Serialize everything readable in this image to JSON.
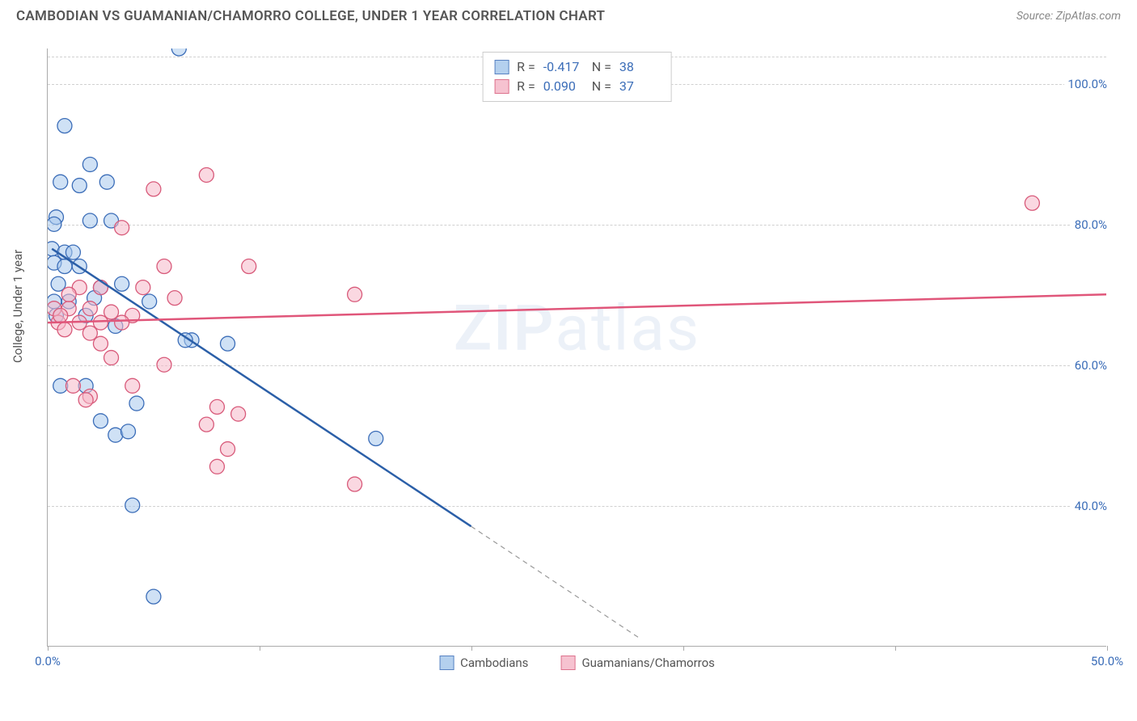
{
  "header": {
    "title": "CAMBODIAN VS GUAMANIAN/CHAMORRO COLLEGE, UNDER 1 YEAR CORRELATION CHART",
    "source": "Source: ZipAtlas.com"
  },
  "chart": {
    "type": "scatter",
    "y_axis_label": "College, Under 1 year",
    "xlim": [
      0,
      50
    ],
    "ylim": [
      20,
      105
    ],
    "x_ticks": [
      0,
      10,
      20,
      30,
      40,
      50
    ],
    "x_tick_labels": [
      "0.0%",
      "",
      "",
      "",
      "",
      "50.0%"
    ],
    "y_ticks": [
      40,
      60,
      80,
      100
    ],
    "y_tick_labels": [
      "40.0%",
      "60.0%",
      "80.0%",
      "100.0%"
    ],
    "grid_color": "#d0d0d0",
    "axis_color": "#aaaaaa",
    "background_color": "#ffffff",
    "watermark": "ZIPatlas",
    "series": [
      {
        "name": "Cambodians",
        "fill_color": "#a8c8ec",
        "stroke_color": "#3b6db8",
        "fill_opacity": 0.55,
        "marker_radius": 9,
        "regression": {
          "x1": 0.2,
          "y1": 76.5,
          "x2": 20,
          "y2": 37,
          "dash_x1": 20,
          "dash_y1": 37,
          "dash_x2": 28,
          "dash_y2": 21,
          "color": "#2b5fa8",
          "width": 2.5
        },
        "stats": {
          "R": "-0.417",
          "N": "38"
        },
        "points": [
          [
            6.2,
            105
          ],
          [
            0.8,
            94
          ],
          [
            2.0,
            88.5
          ],
          [
            0.6,
            86
          ],
          [
            1.5,
            85.5
          ],
          [
            2.8,
            86
          ],
          [
            0.4,
            81
          ],
          [
            0.3,
            80
          ],
          [
            3.0,
            80.5
          ],
          [
            0.2,
            76.5
          ],
          [
            0.8,
            76
          ],
          [
            1.2,
            76
          ],
          [
            0.3,
            74.5
          ],
          [
            0.8,
            74
          ],
          [
            1.5,
            74
          ],
          [
            0.5,
            71.5
          ],
          [
            2.5,
            71
          ],
          [
            3.5,
            71.5
          ],
          [
            0.3,
            69
          ],
          [
            1.0,
            69
          ],
          [
            2.2,
            69.5
          ],
          [
            4.8,
            69
          ],
          [
            0.4,
            67
          ],
          [
            1.8,
            67
          ],
          [
            3.2,
            65.5
          ],
          [
            6.8,
            63.5
          ],
          [
            8.5,
            63
          ],
          [
            0.6,
            57
          ],
          [
            1.8,
            57
          ],
          [
            4.2,
            54.5
          ],
          [
            2.5,
            52
          ],
          [
            3.2,
            50
          ],
          [
            3.8,
            50.5
          ],
          [
            15.5,
            49.5
          ],
          [
            4.0,
            40
          ],
          [
            5.0,
            27
          ],
          [
            6.5,
            63.5
          ],
          [
            2.0,
            80.5
          ]
        ]
      },
      {
        "name": "Guamanians/Chamorros",
        "fill_color": "#f5b8c8",
        "stroke_color": "#d85a7a",
        "fill_opacity": 0.55,
        "marker_radius": 9,
        "regression": {
          "x1": 0,
          "y1": 66,
          "x2": 50,
          "y2": 70,
          "color": "#e0567a",
          "width": 2.5
        },
        "stats": {
          "R": "0.090",
          "N": "37"
        },
        "points": [
          [
            7.5,
            87
          ],
          [
            5.0,
            85
          ],
          [
            3.5,
            79.5
          ],
          [
            46.5,
            83
          ],
          [
            5.5,
            74
          ],
          [
            9.5,
            74
          ],
          [
            1.5,
            71
          ],
          [
            2.5,
            71
          ],
          [
            4.5,
            71
          ],
          [
            6.0,
            69.5
          ],
          [
            14.5,
            70
          ],
          [
            0.3,
            68
          ],
          [
            1.0,
            68
          ],
          [
            2.0,
            68
          ],
          [
            3.0,
            67.5
          ],
          [
            4.0,
            67
          ],
          [
            0.5,
            66
          ],
          [
            1.5,
            66
          ],
          [
            2.5,
            66
          ],
          [
            3.5,
            66
          ],
          [
            0.8,
            65
          ],
          [
            2.0,
            64.5
          ],
          [
            5.5,
            60
          ],
          [
            1.2,
            57
          ],
          [
            4.0,
            57
          ],
          [
            2.0,
            55.5
          ],
          [
            1.8,
            55
          ],
          [
            8.0,
            54
          ],
          [
            9.0,
            53
          ],
          [
            7.5,
            51.5
          ],
          [
            8.5,
            48
          ],
          [
            8.0,
            45.5
          ],
          [
            14.5,
            43
          ],
          [
            3.0,
            61
          ],
          [
            2.5,
            63
          ],
          [
            1.0,
            70
          ],
          [
            0.6,
            67
          ]
        ]
      }
    ],
    "stats_box_labels": {
      "R": "R =",
      "N": "N ="
    },
    "legend": [
      "Cambodians",
      "Guamanians/Chamorros"
    ]
  }
}
